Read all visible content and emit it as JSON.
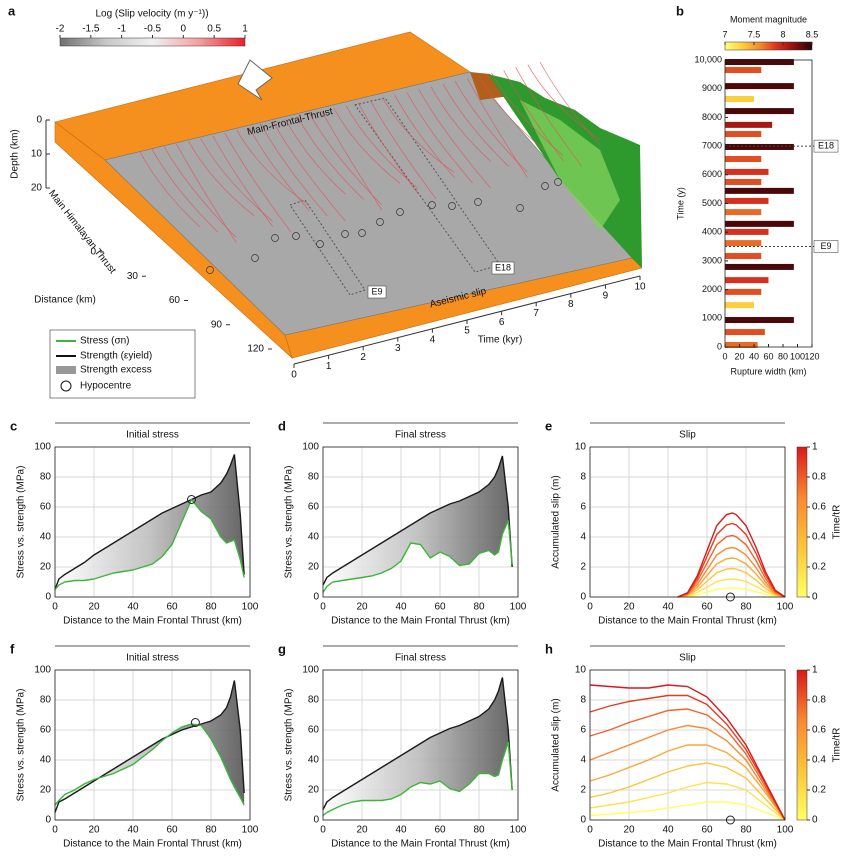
{
  "panel_a": {
    "label": "a",
    "colorbar": {
      "title": "Log (Slip velocity (m y⁻¹))",
      "lim": [
        -2,
        1
      ],
      "ticks": [
        -2,
        -1.5,
        -1,
        -0.5,
        0,
        0.5,
        1
      ],
      "colors": [
        "#707070",
        "#c8c8c8",
        "#f0f0f0",
        "#f4a0a0",
        "#e8202a"
      ]
    },
    "depth_axis": {
      "title": "Depth (km)",
      "lim": [
        0,
        20
      ],
      "ticks": [
        0,
        10,
        20
      ]
    },
    "distance_axis": {
      "title": "Distance (km)",
      "lim": [
        0,
        120
      ],
      "ticks": [
        0,
        30,
        60,
        90,
        120
      ]
    },
    "time_axis": {
      "title": "Time (kyr)",
      "lim": [
        0,
        10
      ],
      "ticks": [
        0,
        1,
        2,
        3,
        4,
        5,
        6,
        7,
        8,
        9,
        10
      ]
    },
    "labels": {
      "mft": "Main-Frontal-Thrust",
      "mht": "Main Himalayan Thrust",
      "aseismic": "Aseismic slip",
      "e9": "E9",
      "e18": "E18"
    },
    "legend": [
      "Stress (σn)",
      "Strength (εyield)",
      "Strength excess",
      "Hypocentre"
    ]
  },
  "chart_data": [
    {
      "type": "bar",
      "panel": "b",
      "title": "Moment magnitude",
      "xlabel": "Rupture width (km)",
      "ylabel": "Time (y)",
      "x": [
        9930,
        9650,
        9090,
        8640,
        8220,
        7740,
        7420,
        6970,
        6550,
        6100,
        5750,
        5440,
        5090,
        4700,
        4290,
        4010,
        3620,
        3170,
        2790,
        2330,
        1920,
        1460,
        940,
        520,
        70
      ],
      "values": [
        95,
        50,
        95,
        40,
        95,
        65,
        50,
        95,
        50,
        60,
        50,
        95,
        60,
        50,
        95,
        60,
        50,
        50,
        95,
        60,
        50,
        40,
        95,
        55,
        45
      ],
      "magnitude": [
        8.4,
        7.8,
        8.4,
        7.3,
        8.4,
        8.1,
        7.8,
        8.4,
        7.8,
        7.9,
        7.8,
        8.4,
        7.9,
        7.7,
        8.4,
        7.9,
        7.7,
        7.8,
        8.4,
        7.9,
        7.8,
        7.3,
        8.4,
        7.8,
        7.7
      ],
      "colormap": [
        "#ffff80",
        "#fbd03c",
        "#f08a2c",
        "#d8301c",
        "#8a0f0f",
        "#2a0505"
      ],
      "clim": [
        7,
        8.5
      ],
      "cticks": [
        7,
        7.5,
        8,
        8.5
      ],
      "xlim": [
        0,
        120
      ],
      "xticks": [
        0,
        20,
        40,
        60,
        80,
        100,
        120
      ],
      "ylim": [
        0,
        10000
      ],
      "yticks": [
        0,
        1000,
        2000,
        3000,
        4000,
        5000,
        6000,
        7000,
        8000,
        9000,
        {
          "value": 10000,
          "label": "10,000"
        }
      ],
      "grid": false,
      "annotations": [
        {
          "label": "E18",
          "value": 7000
        },
        {
          "label": "E9",
          "value": 3500
        }
      ]
    },
    {
      "type": "line",
      "panel": "c",
      "title": "Initial stress",
      "xlabel": "Distance to the Main Frontal Thrust (km)",
      "ylabel": "Stress vs. strength (MPa)",
      "x": [
        0,
        2,
        5,
        10,
        15,
        20,
        25,
        30,
        35,
        40,
        45,
        50,
        55,
        60,
        65,
        70,
        75,
        80,
        85,
        88,
        90,
        92,
        95,
        97
      ],
      "series": [
        {
          "color": "#1a1a1a",
          "values": [
            5,
            12,
            15,
            19,
            23,
            28,
            32,
            36,
            40,
            44,
            48,
            52,
            56,
            59,
            62,
            65,
            68,
            70,
            76,
            82,
            88,
            95,
            55,
            15
          ]
        },
        {
          "color": "#3cb43c",
          "values": [
            5,
            8,
            10,
            11,
            11,
            12,
            14,
            16,
            17,
            18,
            20,
            22,
            27,
            35,
            50,
            65,
            57,
            52,
            40,
            36,
            37,
            38,
            25,
            13
          ]
        }
      ],
      "strength_excess_fill": true,
      "hypocentre": [
        70,
        65
      ],
      "xlim": [
        0,
        100
      ],
      "xticks": [
        0,
        20,
        40,
        60,
        80,
        100
      ],
      "ylim": [
        0,
        100
      ],
      "yticks": [
        0,
        20,
        40,
        60,
        80,
        100
      ],
      "grid": true
    },
    {
      "type": "line",
      "panel": "d",
      "title": "Final stress",
      "xlabel": "Distance to the Main Frontal Thrust (km)",
      "ylabel": "Stress vs. strength (MPa)",
      "x": [
        0,
        2,
        5,
        10,
        15,
        20,
        25,
        30,
        35,
        40,
        45,
        50,
        55,
        60,
        65,
        70,
        75,
        80,
        85,
        88,
        90,
        92,
        95,
        97
      ],
      "series": [
        {
          "color": "#1a1a1a",
          "values": [
            8,
            13,
            16,
            20,
            24,
            28,
            32,
            36,
            40,
            44,
            48,
            52,
            56,
            59,
            62,
            64,
            67,
            70,
            75,
            80,
            86,
            94,
            60,
            20
          ]
        },
        {
          "color": "#3cb43c",
          "values": [
            3,
            7,
            10,
            11,
            12,
            13,
            14,
            16,
            19,
            24,
            36,
            35,
            26,
            30,
            27,
            21,
            22,
            29,
            31,
            28,
            30,
            42,
            51,
            22
          ]
        }
      ],
      "strength_excess_fill": true,
      "xlim": [
        0,
        100
      ],
      "xticks": [
        0,
        20,
        40,
        60,
        80,
        100
      ],
      "ylim": [
        0,
        100
      ],
      "yticks": [
        0,
        20,
        40,
        60,
        80,
        100
      ],
      "grid": true
    },
    {
      "type": "line",
      "panel": "e",
      "title": "Slip",
      "xlabel": "Distance to the Main Frontal Thrust (km)",
      "ylabel": "Accumulated slip (m)",
      "x": [
        45,
        50,
        55,
        60,
        65,
        70,
        73,
        75,
        80,
        85,
        90,
        95,
        100
      ],
      "series": [
        {
          "color": "#ffff66",
          "values": [
            0,
            0.03,
            0.15,
            0.33,
            0.51,
            0.59,
            0.6,
            0.59,
            0.51,
            0.36,
            0.18,
            0.05,
            0
          ]
        },
        {
          "color": "#ffe24d",
          "values": [
            0,
            0.06,
            0.3,
            0.66,
            1.02,
            1.18,
            1.2,
            1.18,
            1.02,
            0.72,
            0.36,
            0.1,
            0
          ]
        },
        {
          "color": "#fdc43c",
          "values": [
            0,
            0.1,
            0.48,
            1.05,
            1.62,
            1.86,
            1.9,
            1.86,
            1.62,
            1.14,
            0.57,
            0.15,
            0
          ]
        },
        {
          "color": "#fca636",
          "values": [
            0,
            0.13,
            0.65,
            1.43,
            2.21,
            2.55,
            2.6,
            2.55,
            2.21,
            1.56,
            0.78,
            0.21,
            0
          ]
        },
        {
          "color": "#f98830",
          "values": [
            0,
            0.17,
            0.83,
            1.82,
            2.81,
            3.23,
            3.3,
            3.23,
            2.81,
            1.98,
            0.99,
            0.26,
            0
          ]
        },
        {
          "color": "#f0642a",
          "values": [
            0,
            0.21,
            1.03,
            2.26,
            3.49,
            4.02,
            4.1,
            4.02,
            3.49,
            2.46,
            1.23,
            0.33,
            0
          ]
        },
        {
          "color": "#e03e22",
          "values": [
            0,
            0.25,
            1.23,
            2.7,
            4.17,
            4.8,
            4.9,
            4.8,
            4.17,
            2.94,
            1.47,
            0.39,
            0
          ]
        },
        {
          "color": "#d7191c",
          "values": [
            0,
            0.28,
            1.4,
            3.08,
            4.76,
            5.49,
            5.6,
            5.49,
            4.76,
            3.36,
            1.68,
            0.45,
            0
          ]
        }
      ],
      "hypocentre": [
        72,
        0
      ],
      "colorbar": {
        "label": "Time/tR",
        "lim": [
          0,
          1
        ],
        "ticks": [
          0,
          0.2,
          0.4,
          0.6,
          0.8,
          1
        ],
        "colors": [
          "#ffff66",
          "#fdc43c",
          "#f98830",
          "#d7191c"
        ]
      },
      "xlim": [
        0,
        100
      ],
      "xticks": [
        0,
        20,
        40,
        60,
        80,
        100
      ],
      "ylim": [
        0,
        10
      ],
      "yticks": [
        0,
        2,
        4,
        6,
        8,
        10
      ],
      "grid": true
    },
    {
      "type": "line",
      "panel": "f",
      "title": "Initial stress",
      "xlabel": "Distance to the Main Frontal Thrust (km)",
      "ylabel": "Stress vs. strength (MPa)",
      "x": [
        0,
        2,
        5,
        10,
        15,
        20,
        25,
        30,
        35,
        40,
        45,
        50,
        55,
        60,
        65,
        70,
        75,
        80,
        85,
        88,
        90,
        92,
        95,
        97
      ],
      "series": [
        {
          "color": "#1a1a1a",
          "values": [
            5,
            12,
            14,
            18,
            22,
            26,
            30,
            34,
            38,
            42,
            46,
            50,
            54,
            57,
            60,
            62,
            64,
            66,
            70,
            75,
            82,
            93,
            60,
            18
          ]
        },
        {
          "color": "#3cb43c",
          "values": [
            10,
            13,
            17,
            20,
            24,
            27,
            29,
            31,
            34,
            37,
            42,
            47,
            53,
            58,
            62,
            64,
            63,
            54,
            42,
            33,
            27,
            22,
            15,
            10
          ]
        }
      ],
      "strength_excess_fill": true,
      "hypocentre": [
        72,
        65
      ],
      "xlim": [
        0,
        100
      ],
      "xticks": [
        0,
        20,
        40,
        60,
        80,
        100
      ],
      "ylim": [
        0,
        100
      ],
      "yticks": [
        0,
        20,
        40,
        60,
        80,
        100
      ],
      "grid": true
    },
    {
      "type": "line",
      "panel": "g",
      "title": "Final stress",
      "xlabel": "Distance to the Main Frontal Thrust (km)",
      "ylabel": "Stress vs. strength (MPa)",
      "x": [
        0,
        2,
        5,
        10,
        15,
        20,
        25,
        30,
        35,
        40,
        45,
        50,
        55,
        60,
        65,
        70,
        75,
        80,
        85,
        88,
        90,
        92,
        95,
        97
      ],
      "series": [
        {
          "color": "#1a1a1a",
          "values": [
            7,
            12,
            15,
            19,
            23,
            27,
            31,
            35,
            39,
            43,
            47,
            51,
            55,
            58,
            61,
            63,
            66,
            69,
            74,
            80,
            86,
            95,
            60,
            20
          ]
        },
        {
          "color": "#3cb43c",
          "values": [
            3,
            5,
            7,
            10,
            12,
            13,
            13,
            13,
            14,
            17,
            22,
            25,
            24,
            26,
            21,
            19,
            24,
            31,
            31,
            29,
            30,
            40,
            52,
            20
          ]
        }
      ],
      "strength_excess_fill": true,
      "xlim": [
        0,
        100
      ],
      "xticks": [
        0,
        20,
        40,
        60,
        80,
        100
      ],
      "ylim": [
        0,
        100
      ],
      "yticks": [
        0,
        20,
        40,
        60,
        80,
        100
      ],
      "grid": true
    },
    {
      "type": "line",
      "panel": "h",
      "title": "Slip",
      "xlabel": "Distance to the Main Frontal Thrust (km)",
      "ylabel": "Accumulated slip (m)",
      "x": [
        0,
        10,
        20,
        30,
        40,
        50,
        60,
        70,
        80,
        90,
        100
      ],
      "series": [
        {
          "color": "#ffff66",
          "values": [
            0.3,
            0.4,
            0.5,
            0.6,
            0.8,
            1.0,
            1.2,
            1.2,
            1.0,
            0.5,
            0
          ]
        },
        {
          "color": "#ffe24d",
          "values": [
            0.8,
            1.0,
            1.2,
            1.5,
            1.8,
            2.2,
            2.5,
            2.4,
            2.0,
            1.0,
            0
          ]
        },
        {
          "color": "#fdc43c",
          "values": [
            1.5,
            1.8,
            2.2,
            2.7,
            3.2,
            3.6,
            3.8,
            3.5,
            2.8,
            1.4,
            0
          ]
        },
        {
          "color": "#fca636",
          "values": [
            2.6,
            3.0,
            3.5,
            4.0,
            4.6,
            5.0,
            5.0,
            4.5,
            3.5,
            1.8,
            0
          ]
        },
        {
          "color": "#f98830",
          "values": [
            4.0,
            4.5,
            5.0,
            5.5,
            6.0,
            6.3,
            6.1,
            5.3,
            4.0,
            2.0,
            0
          ]
        },
        {
          "color": "#f0642a",
          "values": [
            5.6,
            6.0,
            6.5,
            6.9,
            7.3,
            7.4,
            7.0,
            6.0,
            4.4,
            2.2,
            0
          ]
        },
        {
          "color": "#e03e22",
          "values": [
            7.2,
            7.6,
            7.9,
            8.1,
            8.3,
            8.3,
            7.7,
            6.4,
            4.7,
            2.4,
            0
          ]
        },
        {
          "color": "#d7191c",
          "values": [
            9.0,
            8.9,
            8.8,
            8.8,
            9.0,
            8.9,
            8.2,
            6.8,
            5.0,
            2.5,
            0
          ]
        }
      ],
      "hypocentre": [
        72,
        0
      ],
      "colorbar": {
        "label": "Time/tR",
        "lim": [
          0,
          1
        ],
        "ticks": [
          0,
          0.2,
          0.4,
          0.6,
          0.8,
          1
        ],
        "colors": [
          "#ffff66",
          "#fdc43c",
          "#f98830",
          "#d7191c"
        ]
      },
      "xlim": [
        0,
        100
      ],
      "xticks": [
        0,
        20,
        40,
        60,
        80,
        100
      ],
      "ylim": [
        0,
        10
      ],
      "yticks": [
        0,
        2,
        4,
        6,
        8,
        10
      ],
      "grid": true
    }
  ]
}
